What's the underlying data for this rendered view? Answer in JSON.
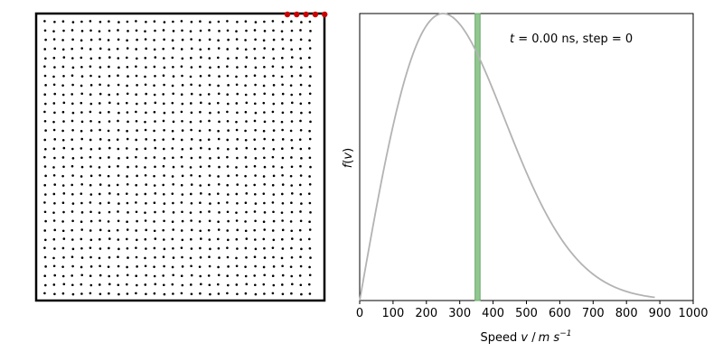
{
  "chart_data": [
    {
      "type": "scatter",
      "title": "",
      "description_kind": "particle-box",
      "grid": {
        "rows": 31,
        "cols": 30
      },
      "highlight_color": "#cc0000",
      "particle_color": "#000000",
      "highlight_particles": 5
    },
    {
      "type": "line",
      "title": "",
      "annotation": {
        "prefix": "t",
        "text": " = 0.00 ns, step = 0"
      },
      "xlabel": "Speed v / m s⁻¹",
      "xlabel_parts": {
        "main": "Speed ",
        "var": "v",
        "sep": " /",
        "unit": "m s",
        "exp": "−1"
      },
      "ylabel": "f(v)",
      "ylabel_parts": {
        "f": "f",
        "open": "(",
        "v": "v",
        "close": ")"
      },
      "xlim": [
        0,
        1000
      ],
      "x_ticks": [
        "0",
        "100",
        "200",
        "300",
        "400",
        "500",
        "600",
        "700",
        "800",
        "900",
        "1000"
      ],
      "y_ticks_shown": false,
      "curve": {
        "name": "",
        "color": "#b3b3b3",
        "peak_speed": 250,
        "x_max": 885
      },
      "histogram": {
        "bar_start": 346,
        "bar_end": 361,
        "color": "#90c890",
        "edge_color": "#6aa86a"
      }
    }
  ]
}
